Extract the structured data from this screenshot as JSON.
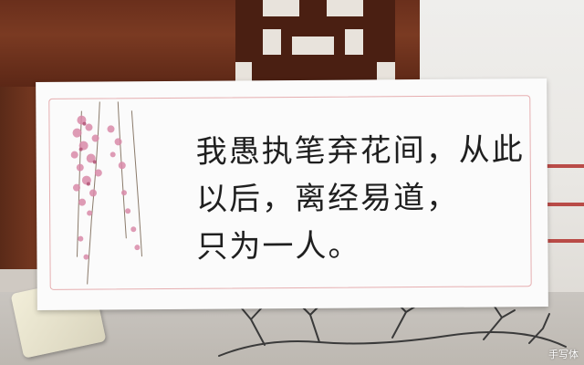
{
  "card": {
    "poem_lines": [
      "我愚执笔弃花间，从此",
      "以后，离经易道，",
      "只为一人。"
    ]
  },
  "watermark": {
    "text": "手写体"
  },
  "colors": {
    "wood": "#6a2f1c",
    "card_border": "#e6aeb0",
    "ink": "#1f1f1f",
    "blossom": "#d98aa8"
  }
}
